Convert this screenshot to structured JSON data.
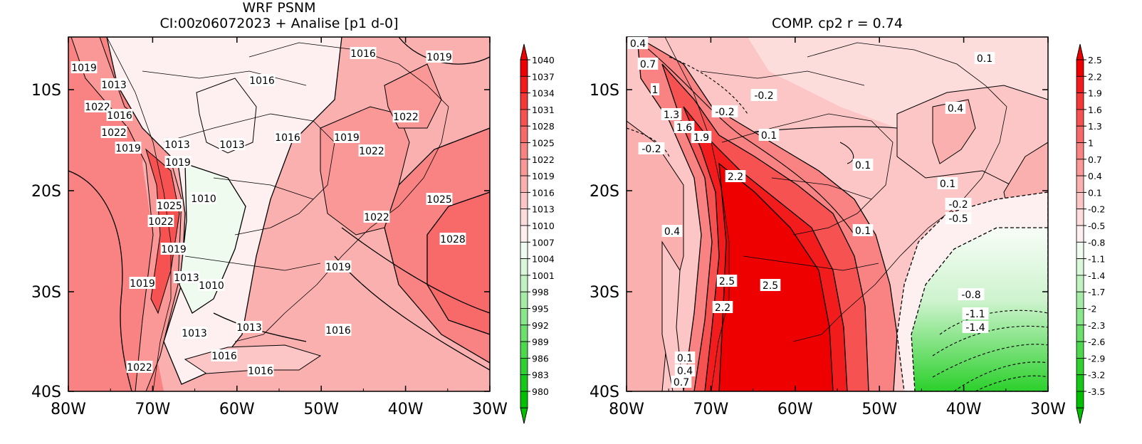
{
  "left_panel": {
    "title_line1": "WRF PSNM",
    "title_line2": "CI:00z06072023 + Analise  [p1 d-0]",
    "lat_ticks": [
      "10S",
      "20S",
      "30S",
      "40S"
    ],
    "lon_ticks": [
      "80W",
      "70W",
      "60W",
      "50W",
      "40W",
      "30W"
    ],
    "colorbar": {
      "levels": [
        "1040",
        "1037",
        "1034",
        "1031",
        "1028",
        "1025",
        "1022",
        "1019",
        "1016",
        "1013",
        "1010",
        "1007",
        "1004",
        "1001",
        "998",
        "995",
        "992",
        "989",
        "986",
        "983",
        "980"
      ],
      "colors": [
        "#ee0000",
        "#f21c1c",
        "#f43838",
        "#f65252",
        "#f86a6a",
        "#f98282",
        "#fa9898",
        "#fbb0b0",
        "#fcc6c6",
        "#fddcdc",
        "#fef0f0",
        "#eefbee",
        "#daf7da",
        "#c2f2c2",
        "#a6eca6",
        "#8ae68a",
        "#6cdf6c",
        "#4ed84e",
        "#30d030",
        "#18c818",
        "#00c000"
      ],
      "arrow_top": "#ee0000",
      "arrow_bottom": "#00c000"
    },
    "contour_labels": [
      "1019",
      "1013",
      "1022",
      "1016",
      "1022",
      "1019",
      "1013",
      "1019",
      "1016",
      "1013",
      "1016",
      "1019",
      "1022",
      "1022",
      "1010",
      "1025",
      "1022",
      "1019",
      "1013",
      "1019",
      "1010",
      "1013",
      "1013",
      "1016",
      "1016",
      "1022",
      "1028",
      "1025",
      "1022",
      "1019",
      "1016",
      "1019",
      "1016"
    ]
  },
  "right_panel": {
    "title": "COMP. cp2  r =  0.74",
    "lat_ticks": [
      "10S",
      "20S",
      "30S",
      "40S"
    ],
    "lon_ticks": [
      "80W",
      "70W",
      "60W",
      "50W",
      "40W",
      "30W"
    ],
    "colorbar": {
      "levels": [
        "2.5",
        "2.2",
        "1.9",
        "1.6",
        "1.3",
        "1",
        "0.7",
        "0.4",
        "0.1",
        "-0.2",
        "-0.5",
        "-0.8",
        "-1.1",
        "-1.4",
        "-1.7",
        "-2",
        "-2.3",
        "-2.6",
        "-2.9",
        "-3.2",
        "-3.5"
      ],
      "colors": [
        "#ee0000",
        "#f21c1c",
        "#f43838",
        "#f65252",
        "#f86a6a",
        "#f98282",
        "#fa9898",
        "#fbb0b0",
        "#fcc6c6",
        "#fddcdc",
        "#fef0f0",
        "#eefbee",
        "#daf7da",
        "#c2f2c2",
        "#a6eca6",
        "#8ae68a",
        "#6cdf6c",
        "#4ed84e",
        "#30d030",
        "#18c818",
        "#00c000"
      ],
      "arrow_top": "#ee0000",
      "arrow_bottom": "#00c000"
    },
    "contour_labels": [
      "0.4",
      "0.7",
      "1",
      "-0.2",
      "-0.2",
      "1.3",
      "1.6",
      "1.9",
      "-0.2",
      "0.1",
      "2.2",
      "0.1",
      "0.1",
      "0.4",
      "0.1",
      "-0.2",
      "-0.5",
      "0.4",
      "2.5",
      "2.5",
      "2.2",
      "-0.8",
      "-1.1",
      "-1.4",
      "0.1",
      "0.4",
      "0.7",
      "0.1"
    ]
  }
}
